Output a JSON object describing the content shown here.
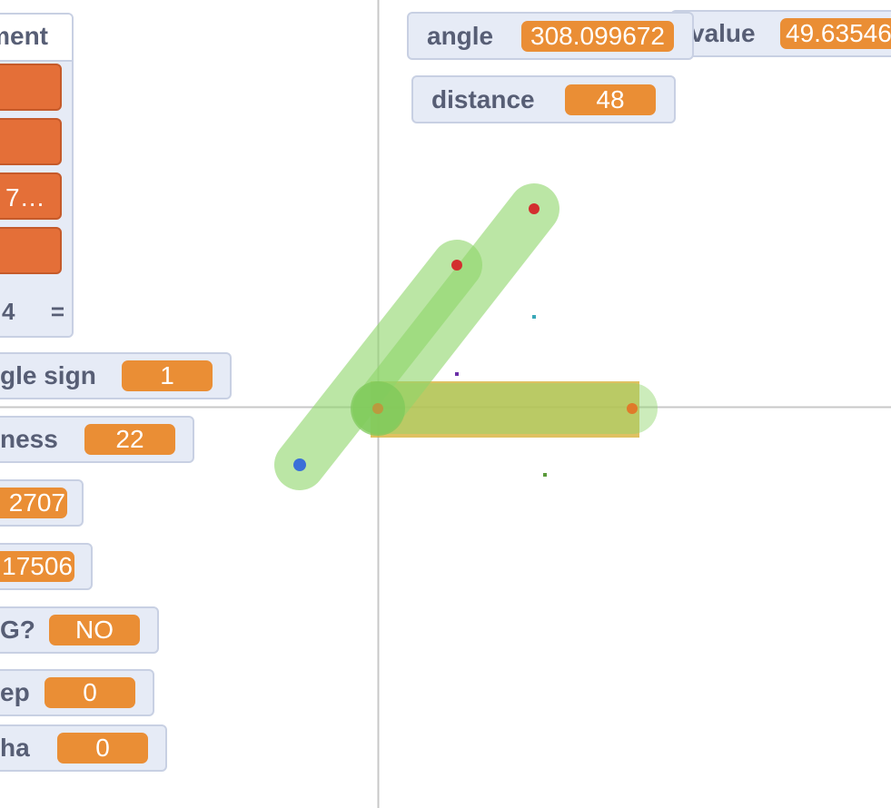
{
  "stage": {
    "axis_color": "#c8c8c8",
    "arm_color": "#8fd66a",
    "bar_color": "#d7b23a",
    "dots": [
      {
        "name": "joint-red-dot-upper",
        "color": "#d32f2f"
      },
      {
        "name": "joint-red-dot-lower",
        "color": "#d32f2f"
      },
      {
        "name": "joint-blue-dot",
        "color": "#3a6fd8"
      },
      {
        "name": "joint-orange-dot-left",
        "color": "#e07a2a"
      },
      {
        "name": "joint-orange-dot-right",
        "color": "#e07a2a"
      },
      {
        "name": "teal-dot",
        "color": "#3aa8b8"
      },
      {
        "name": "purple-dot",
        "color": "#6b2fa8"
      },
      {
        "name": "green-dot",
        "color": "#5a9a3a"
      }
    ]
  },
  "list": {
    "title": "ment",
    "items": [
      "",
      "",
      "7…",
      ""
    ],
    "length_label": "4",
    "resize_label": "="
  },
  "monitors": {
    "angle": {
      "label": "angle",
      "value": "308.099672"
    },
    "value": {
      "label": "value",
      "value": "49.63546"
    },
    "distance": {
      "label": "distance",
      "value": "48"
    },
    "angle_sign": {
      "label": "gle sign",
      "value": "1"
    },
    "thickness": {
      "label": "ness",
      "value": "22"
    },
    "m2707": {
      "label": "",
      "value": "2707"
    },
    "m17506": {
      "label": "",
      "value": "17506"
    },
    "question": {
      "label": "G?",
      "value": "NO"
    },
    "step": {
      "label": "ep",
      "value": "0"
    },
    "alpha": {
      "label": "ha",
      "value": "0"
    }
  }
}
